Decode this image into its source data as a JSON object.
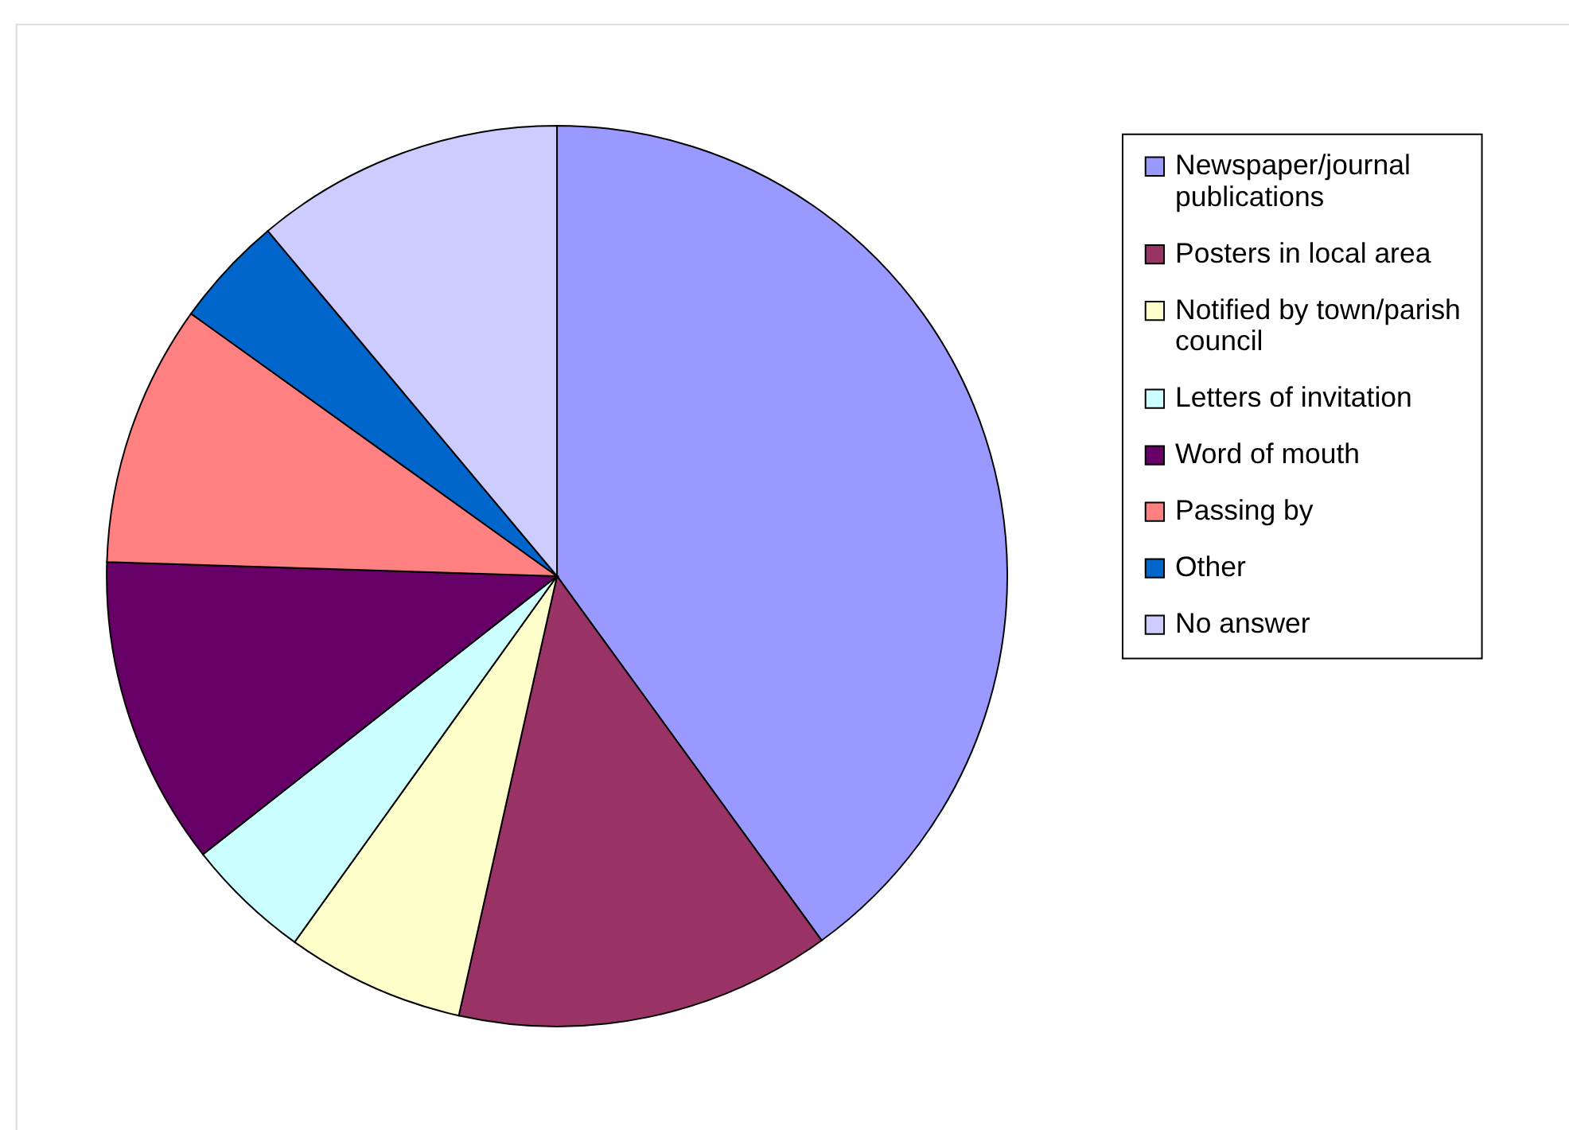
{
  "chart_data": {
    "type": "pie",
    "categories": [
      "Newspaper/journal publications",
      "Posters in local area",
      "Notified by town/parish council",
      "Letters of invitation",
      "Word of mouth",
      "Passing by",
      "Other",
      "No answer"
    ],
    "values": [
      40.0,
      13.5,
      6.4,
      4.5,
      11.1,
      9.4,
      4.0,
      11.1
    ],
    "colors": [
      "#9999ff",
      "#993366",
      "#ffffcc",
      "#ccffff",
      "#660066",
      "#ff8080",
      "#0066cc",
      "#ccccff"
    ],
    "legend": "right"
  }
}
